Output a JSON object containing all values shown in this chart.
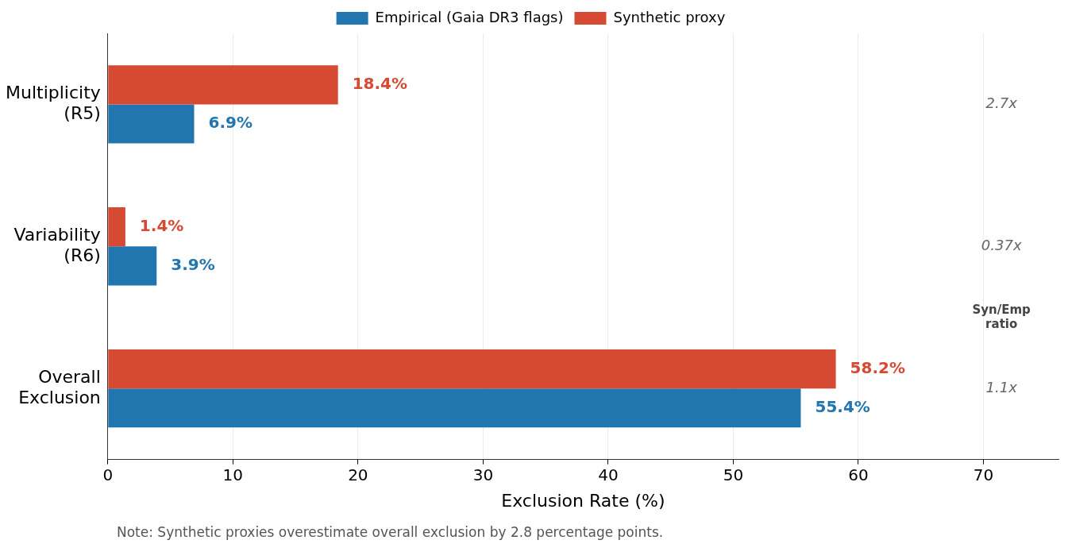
{
  "chart_data": {
    "type": "bar",
    "orientation": "horizontal",
    "categories": [
      "Multiplicity (R5)",
      "Variability (R6)",
      "Overall Exclusion"
    ],
    "series": [
      {
        "name": "Empirical (Gaia DR3 flags)",
        "color": "#2276b0",
        "values": [
          6.9,
          3.9,
          55.4
        ],
        "value_labels": [
          "6.9%",
          "3.9%",
          "55.4%"
        ]
      },
      {
        "name": "Synthetic proxy",
        "color": "#d64a34",
        "values": [
          18.4,
          1.4,
          58.2
        ],
        "value_labels": [
          "18.4%",
          "1.4%",
          "58.2%"
        ]
      }
    ],
    "xlabel": "Exclusion Rate (%)",
    "xlim": [
      0,
      76
    ],
    "xticks": [
      0,
      10,
      20,
      30,
      40,
      50,
      60,
      70
    ],
    "grid": "x",
    "legend": "top",
    "annotations": [
      "2.7x",
      "0.37x",
      "1.1x",
      "Syn/Emp ratio",
      "Note: Synthetic proxies overestimate overall exclusion by 2.8 percentage points."
    ]
  }
}
